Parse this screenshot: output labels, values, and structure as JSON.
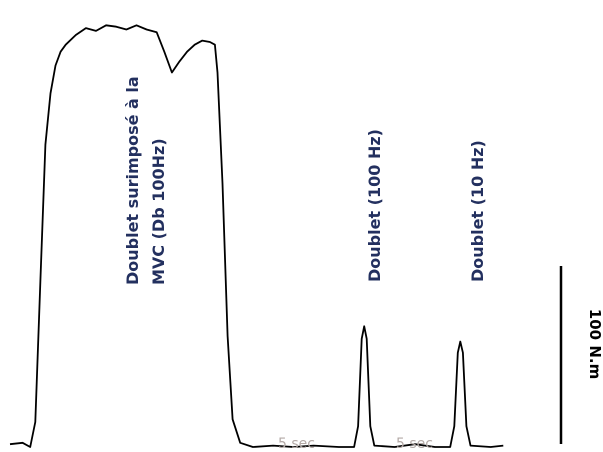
{
  "chart_data": {
    "type": "line",
    "title": "",
    "xlabel": "",
    "ylabel": "",
    "series": [
      {
        "points": [
          [
            0,
            2
          ],
          [
            0.25,
            3
          ],
          [
            0.4,
            0
          ],
          [
            0.5,
            18
          ],
          [
            0.6,
            120
          ],
          [
            0.7,
            218
          ],
          [
            0.8,
            255
          ],
          [
            0.9,
            275
          ],
          [
            1.0,
            285
          ],
          [
            1.1,
            290
          ],
          [
            1.3,
            297
          ],
          [
            1.5,
            302
          ],
          [
            1.7,
            300
          ],
          [
            1.9,
            304
          ],
          [
            2.1,
            303
          ],
          [
            2.3,
            301
          ],
          [
            2.5,
            304
          ],
          [
            2.7,
            301
          ],
          [
            2.9,
            299
          ],
          [
            3.05,
            285
          ],
          [
            3.2,
            270
          ],
          [
            3.35,
            278
          ],
          [
            3.5,
            285
          ],
          [
            3.65,
            290
          ],
          [
            3.8,
            293
          ],
          [
            3.95,
            292
          ],
          [
            4.05,
            290
          ],
          [
            4.1,
            270
          ],
          [
            4.2,
            190
          ],
          [
            4.3,
            80
          ],
          [
            4.4,
            20
          ],
          [
            4.55,
            3
          ],
          [
            4.8,
            0
          ],
          [
            5.2,
            1
          ],
          [
            5.6,
            0
          ],
          [
            6.0,
            1
          ],
          [
            6.5,
            0
          ],
          [
            6.8,
            0
          ],
          [
            6.88,
            15
          ],
          [
            6.95,
            78
          ],
          [
            7.0,
            87
          ],
          [
            7.05,
            78
          ],
          [
            7.12,
            15
          ],
          [
            7.2,
            1
          ],
          [
            7.6,
            0
          ],
          [
            8.0,
            2
          ],
          [
            8.4,
            0
          ],
          [
            8.7,
            0
          ],
          [
            8.78,
            15
          ],
          [
            8.85,
            68
          ],
          [
            8.9,
            76
          ],
          [
            8.95,
            68
          ],
          [
            9.02,
            15
          ],
          [
            9.1,
            1
          ],
          [
            9.5,
            0
          ],
          [
            9.75,
            1
          ]
        ]
      }
    ],
    "annotations": [
      {
        "lines": [
          "Doublet surimposé à la",
          "MVC (Db 100Hz)"
        ]
      },
      {
        "lines": [
          "Doublet (100 Hz)"
        ]
      },
      {
        "lines": [
          "Doublet (10 Hz)"
        ]
      }
    ],
    "time_labels": [
      "5 sec",
      "5 sec"
    ],
    "scale_bar": {
      "label": "100 N.m",
      "value": 100
    },
    "xlim": [
      0,
      10
    ],
    "ylim": [
      0,
      310
    ],
    "grid": false,
    "legend": "none",
    "colors": {
      "trace": "#000000",
      "annotation": "#23305f",
      "time_label": "#b3a9a6"
    }
  }
}
